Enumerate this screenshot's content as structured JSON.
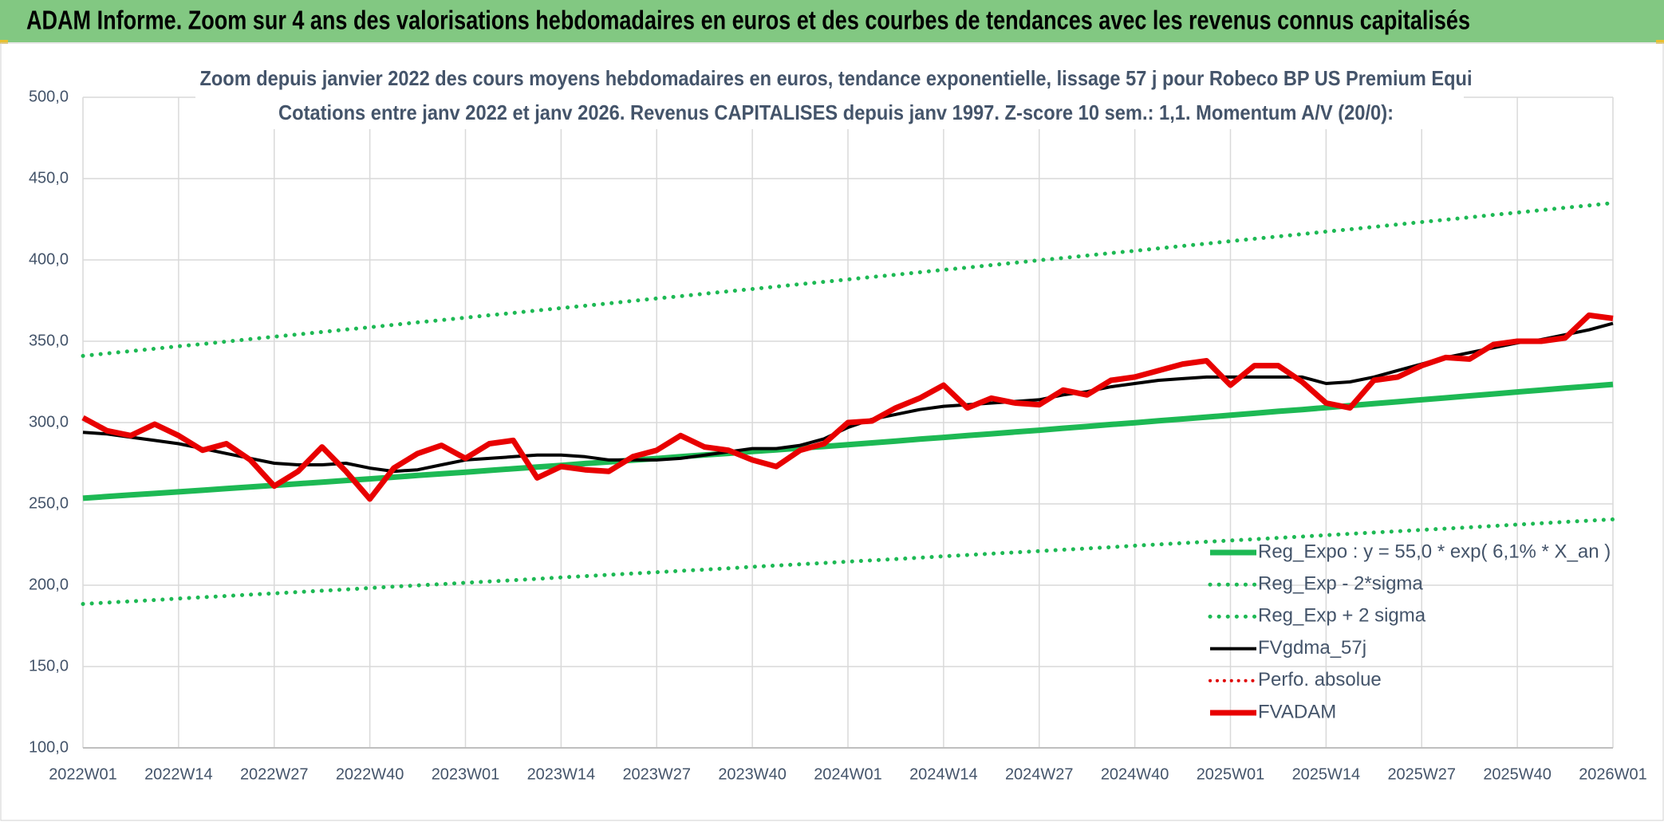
{
  "header": {
    "title": "ADAM Informe. Zoom sur 4 ans des valorisations hebdomadaires en euros et des courbes de tendances avec les revenus connus capitalisés"
  },
  "chart_data": {
    "type": "line",
    "title": "Zoom depuis janvier 2022 des cours moyens hebdomadaires en euros, tendance exponentielle, lissage 57 j pour Robeco BP US Premium Equi",
    "subtitle": "Cotations entre janv 2022 et janv 2026. Revenus CAPITALISES depuis janv 1997. Z-score 10 sem.: 1,1. Momentum A/V (20/0):",
    "categories": [
      "2022W01",
      null,
      null,
      null,
      "2022W14",
      null,
      null,
      null,
      "2022W27",
      null,
      null,
      null,
      "2022W40",
      null,
      null,
      null,
      "2023W01",
      null,
      null,
      null,
      "2023W14",
      null,
      null,
      null,
      "2023W27",
      null,
      null,
      null,
      "2023W40",
      null,
      null,
      null,
      "2024W01",
      null,
      null,
      null,
      "2024W14",
      null,
      null,
      null,
      "2024W27",
      null,
      null,
      null,
      "2024W40",
      null,
      null,
      null,
      "2025W01",
      null,
      null,
      null,
      "2025W14",
      null,
      null,
      null,
      "2025W27",
      null,
      null,
      null,
      "2025W40",
      null,
      null,
      null,
      "2026W01"
    ],
    "ylim": [
      100,
      500
    ],
    "yticks": [
      {
        "value": 100,
        "label": "100,0"
      },
      {
        "value": 150,
        "label": "150,0"
      },
      {
        "value": 200,
        "label": "200,0"
      },
      {
        "value": 250,
        "label": "250,0"
      },
      {
        "value": 300,
        "label": "300,0"
      },
      {
        "value": 350,
        "label": "350,0"
      },
      {
        "value": 400,
        "label": "400,0"
      },
      {
        "value": 450,
        "label": "450,0"
      },
      {
        "value": 500,
        "label": "500,0"
      }
    ],
    "grid": true,
    "legend": "lower right",
    "series": [
      {
        "name": "Reg_Expo : y = 55,0 * exp( 6,1% *  X_an )",
        "color": "#1db954",
        "style": "solid",
        "width": 7,
        "values": [
          253.5,
          254.5,
          255.5,
          256.4,
          257.4,
          258.4,
          259.4,
          260.4,
          261.4,
          262.4,
          263.4,
          264.4,
          265.4,
          266.4,
          267.5,
          268.5,
          269.5,
          270.6,
          271.6,
          272.7,
          273.7,
          274.8,
          275.8,
          276.9,
          277.9,
          279.0,
          280.1,
          281.1,
          282.2,
          283.2,
          284.3,
          285.3,
          286.4,
          287.5,
          288.6,
          289.8,
          290.9,
          292.0,
          293.1,
          294.2,
          295.3,
          296.5,
          297.6,
          298.8,
          299.9,
          301.1,
          302.2,
          303.4,
          304.5,
          305.7,
          306.9,
          308.0,
          309.2,
          310.4,
          311.6,
          312.8,
          314.0,
          315.2,
          316.4,
          317.6,
          318.8,
          320.0,
          321.2,
          322.3,
          323.5
        ]
      },
      {
        "name": "Reg_Exp - 2*sigma",
        "color": "#1db954",
        "style": "dotted",
        "width": 5,
        "values": [
          188.5,
          189.3,
          190.1,
          190.9,
          191.8,
          192.6,
          193.4,
          194.2,
          195.0,
          195.8,
          196.6,
          197.4,
          198.3,
          199.1,
          199.9,
          200.7,
          201.5,
          202.3,
          203.1,
          203.9,
          204.8,
          205.6,
          206.4,
          207.2,
          208.0,
          208.8,
          209.6,
          210.4,
          211.3,
          212.1,
          212.9,
          213.7,
          214.5,
          215.3,
          216.1,
          216.9,
          217.8,
          218.6,
          219.4,
          220.2,
          221.0,
          221.8,
          222.6,
          223.4,
          224.3,
          225.1,
          225.9,
          226.7,
          227.5,
          228.3,
          229.1,
          229.9,
          230.8,
          231.6,
          232.4,
          233.2,
          234.0,
          234.8,
          235.6,
          236.4,
          237.3,
          238.1,
          238.9,
          239.7,
          240.5
        ]
      },
      {
        "name": "Reg_Exp + 2 sigma",
        "color": "#1db954",
        "style": "dotted",
        "width": 5,
        "values": [
          341.0,
          342.5,
          343.9,
          345.4,
          346.9,
          348.3,
          349.8,
          351.3,
          352.8,
          354.2,
          355.7,
          357.2,
          358.6,
          360.1,
          361.6,
          363.0,
          364.5,
          366.0,
          367.4,
          368.9,
          370.4,
          371.8,
          373.3,
          374.8,
          376.3,
          377.7,
          379.2,
          380.7,
          382.1,
          383.6,
          385.1,
          386.5,
          388.0,
          389.5,
          390.9,
          392.4,
          393.9,
          395.3,
          396.8,
          398.3,
          399.8,
          401.2,
          402.7,
          404.2,
          405.6,
          407.1,
          408.6,
          410.0,
          411.5,
          413.0,
          414.4,
          415.9,
          417.4,
          418.8,
          420.3,
          421.8,
          423.3,
          424.7,
          426.2,
          427.7,
          429.1,
          430.6,
          432.1,
          433.5,
          435.0
        ]
      },
      {
        "name": "FVgdma_57j",
        "color": "#000000",
        "style": "solid",
        "width": 4,
        "values": [
          294,
          293,
          291,
          289,
          287,
          284,
          281,
          278,
          275,
          274,
          274,
          275,
          272,
          270,
          271,
          274,
          277,
          278,
          279,
          280,
          280,
          279,
          277,
          277,
          277,
          278,
          280,
          282,
          284,
          284,
          286,
          290,
          297,
          302,
          305,
          308,
          310,
          311,
          312,
          313,
          314,
          317,
          319,
          322,
          324,
          326,
          327,
          328,
          328,
          328,
          328,
          328,
          324,
          325,
          328,
          332,
          336,
          340,
          343,
          346,
          349,
          351,
          354,
          357,
          361
        ]
      },
      {
        "name": "Perfo. absolue",
        "color": "#e00000",
        "style": "dotted",
        "width": 4,
        "values": [
          null,
          null,
          null,
          null,
          null,
          null,
          null,
          null,
          null,
          null,
          null,
          null,
          null,
          null,
          null,
          null,
          null,
          null,
          null,
          null,
          null,
          null,
          null,
          null,
          null,
          null,
          null,
          null,
          null,
          null,
          null,
          null,
          null,
          null,
          null,
          null,
          null,
          null,
          null,
          null,
          null,
          null,
          null,
          null,
          null,
          null,
          null,
          null,
          null,
          null,
          null,
          null,
          null,
          null,
          null,
          null,
          null,
          null,
          null,
          null,
          null,
          null,
          null,
          null,
          null
        ]
      },
      {
        "name": "FVADAM",
        "color": "#e80000",
        "style": "solid",
        "width": 7,
        "values": [
          303,
          295,
          292,
          299,
          292,
          283,
          287,
          277,
          261,
          270,
          285,
          270,
          253,
          272,
          281,
          286,
          278,
          287,
          289,
          266,
          273,
          271,
          270,
          279,
          283,
          292,
          285,
          283,
          277,
          273,
          283,
          287,
          300,
          301,
          309,
          315,
          323,
          309,
          315,
          312,
          311,
          320,
          317,
          326,
          328,
          332,
          336,
          338,
          323,
          335,
          335,
          325,
          312,
          309,
          326,
          328,
          335,
          340,
          339,
          348,
          350,
          350,
          352,
          366,
          364
        ]
      }
    ]
  }
}
